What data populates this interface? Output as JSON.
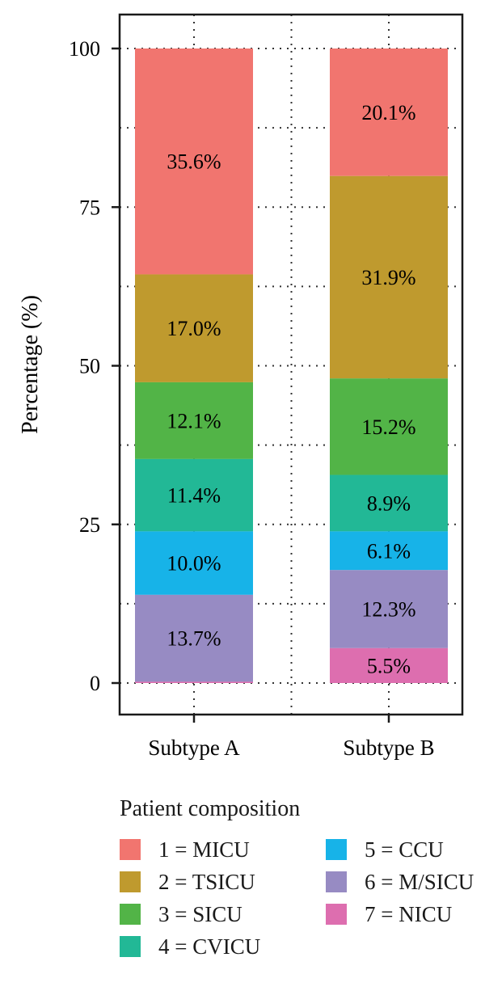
{
  "chart_data": {
    "type": "bar",
    "stacked": true,
    "categories": [
      "Subtype A",
      "Subtype B"
    ],
    "ylabel": "Percentage (%)",
    "xlabel": "",
    "ylim": [
      0,
      100
    ],
    "yticks": [
      0,
      25,
      50,
      75,
      100
    ],
    "grid": true,
    "legend_position": "bottom",
    "legend_title": "Patient composition",
    "series": [
      {
        "name": "1 = MICU",
        "color": "#F1756F",
        "values": [
          35.6,
          20.1
        ],
        "labels": [
          "35.6%",
          "20.1%"
        ]
      },
      {
        "name": "2 = TSICU",
        "color": "#BF9A2E",
        "values": [
          17.0,
          31.9
        ],
        "labels": [
          "17.0%",
          "31.9%"
        ]
      },
      {
        "name": "3 = SICU",
        "color": "#52B447",
        "values": [
          12.1,
          15.2
        ],
        "labels": [
          "12.1%",
          "15.2%"
        ]
      },
      {
        "name": "4 = CVICU",
        "color": "#22B896",
        "values": [
          11.4,
          8.9
        ],
        "labels": [
          "11.4%",
          "8.9%"
        ]
      },
      {
        "name": "5 = CCU",
        "color": "#17B3E8",
        "values": [
          10.0,
          6.1
        ],
        "labels": [
          "10.0%",
          "6.1%"
        ]
      },
      {
        "name": "6 = M/SICU",
        "color": "#978BC3",
        "values": [
          13.7,
          12.3
        ],
        "labels": [
          "13.7%",
          "12.3%"
        ]
      },
      {
        "name": "7 = NICU",
        "color": "#DD6EAF",
        "values": [
          0.2,
          5.5
        ],
        "labels": [
          "",
          "5.5%"
        ]
      }
    ]
  }
}
